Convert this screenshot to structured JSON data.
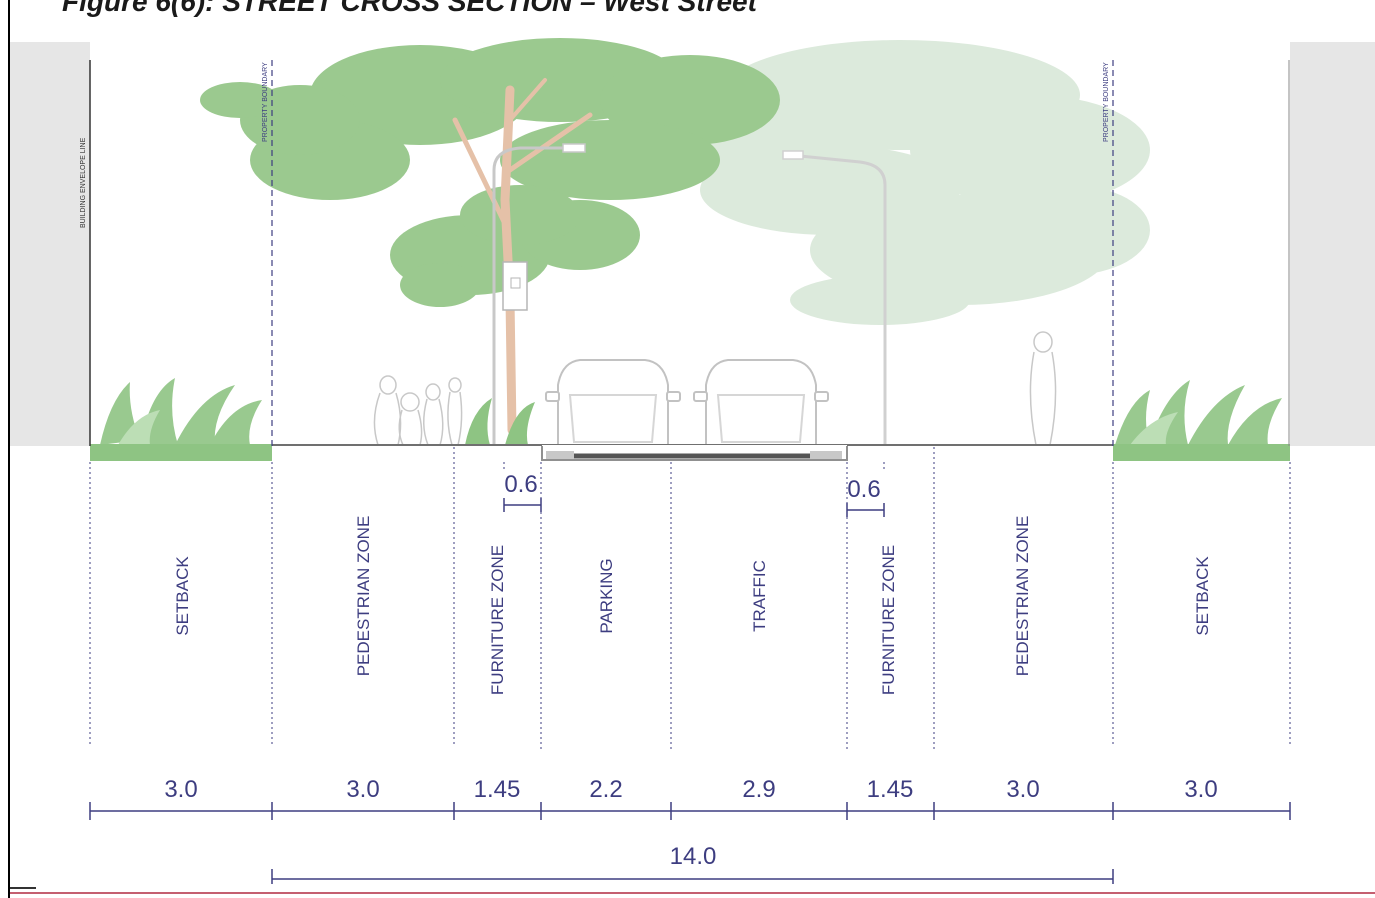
{
  "figure": {
    "title": "Figure 6(6): STREET CROSS SECTION – West Street"
  },
  "labels": {
    "building_envelope_line": "BUILDING ENVELOPE LINE",
    "property_boundary": "PROPERTY BOUNDARY"
  },
  "zones": [
    {
      "name": "SETBACK",
      "width": "3.0"
    },
    {
      "name": "PEDESTRIAN ZONE",
      "width": "3.0"
    },
    {
      "name": "FURNITURE ZONE",
      "width": "1.45"
    },
    {
      "name": "PARKING",
      "width": "2.2"
    },
    {
      "name": "TRAFFIC",
      "width": "2.9"
    },
    {
      "name": "FURNITURE ZONE",
      "width": "1.45"
    },
    {
      "name": "PEDESTRIAN ZONE",
      "width": "3.0"
    },
    {
      "name": "SETBACK",
      "width": "3.0"
    }
  ],
  "offsets": [
    {
      "value": "0.6"
    },
    {
      "value": "0.6"
    }
  ],
  "total_width": "14.0",
  "colors": {
    "building": "#e6e6e6",
    "foliage": "#9bc98f",
    "foliage_faded": "#dceadc",
    "planting": "#8ec483",
    "trunk": "#e5c1a8",
    "dimension_ink": "#3d3d80",
    "ground": "#707070"
  }
}
